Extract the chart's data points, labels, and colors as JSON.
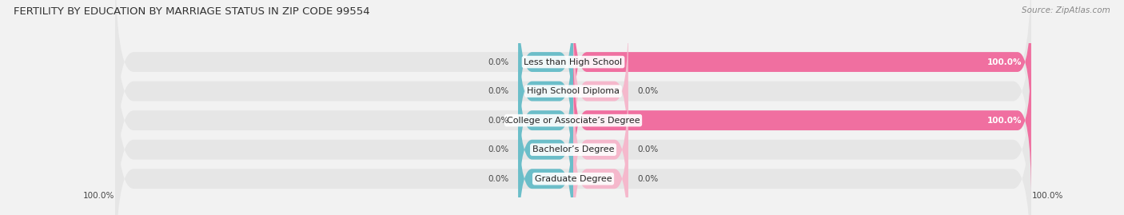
{
  "title": "FERTILITY BY EDUCATION BY MARRIAGE STATUS IN ZIP CODE 99554",
  "source": "Source: ZipAtlas.com",
  "categories": [
    "Less than High School",
    "High School Diploma",
    "College or Associate’s Degree",
    "Bachelor’s Degree",
    "Graduate Degree"
  ],
  "married_values": [
    0.0,
    0.0,
    0.0,
    0.0,
    0.0
  ],
  "unmarried_values": [
    100.0,
    0.0,
    100.0,
    0.0,
    0.0
  ],
  "married_color": "#6bbec9",
  "unmarried_color_full": "#f06fa0",
  "unmarried_color_small": "#f5b8cc",
  "background_color": "#f2f2f2",
  "bar_bg_color": "#e6e6e6",
  "bar_height": 0.68,
  "small_bar_visual": 12.0,
  "xlim_left": -100,
  "xlim_right": 100,
  "title_fontsize": 9.5,
  "label_fontsize": 8.0,
  "value_fontsize": 7.5,
  "source_fontsize": 7.5,
  "legend_fontsize": 8.0,
  "axis_label_left": "100.0%",
  "axis_label_right": "100.0%"
}
